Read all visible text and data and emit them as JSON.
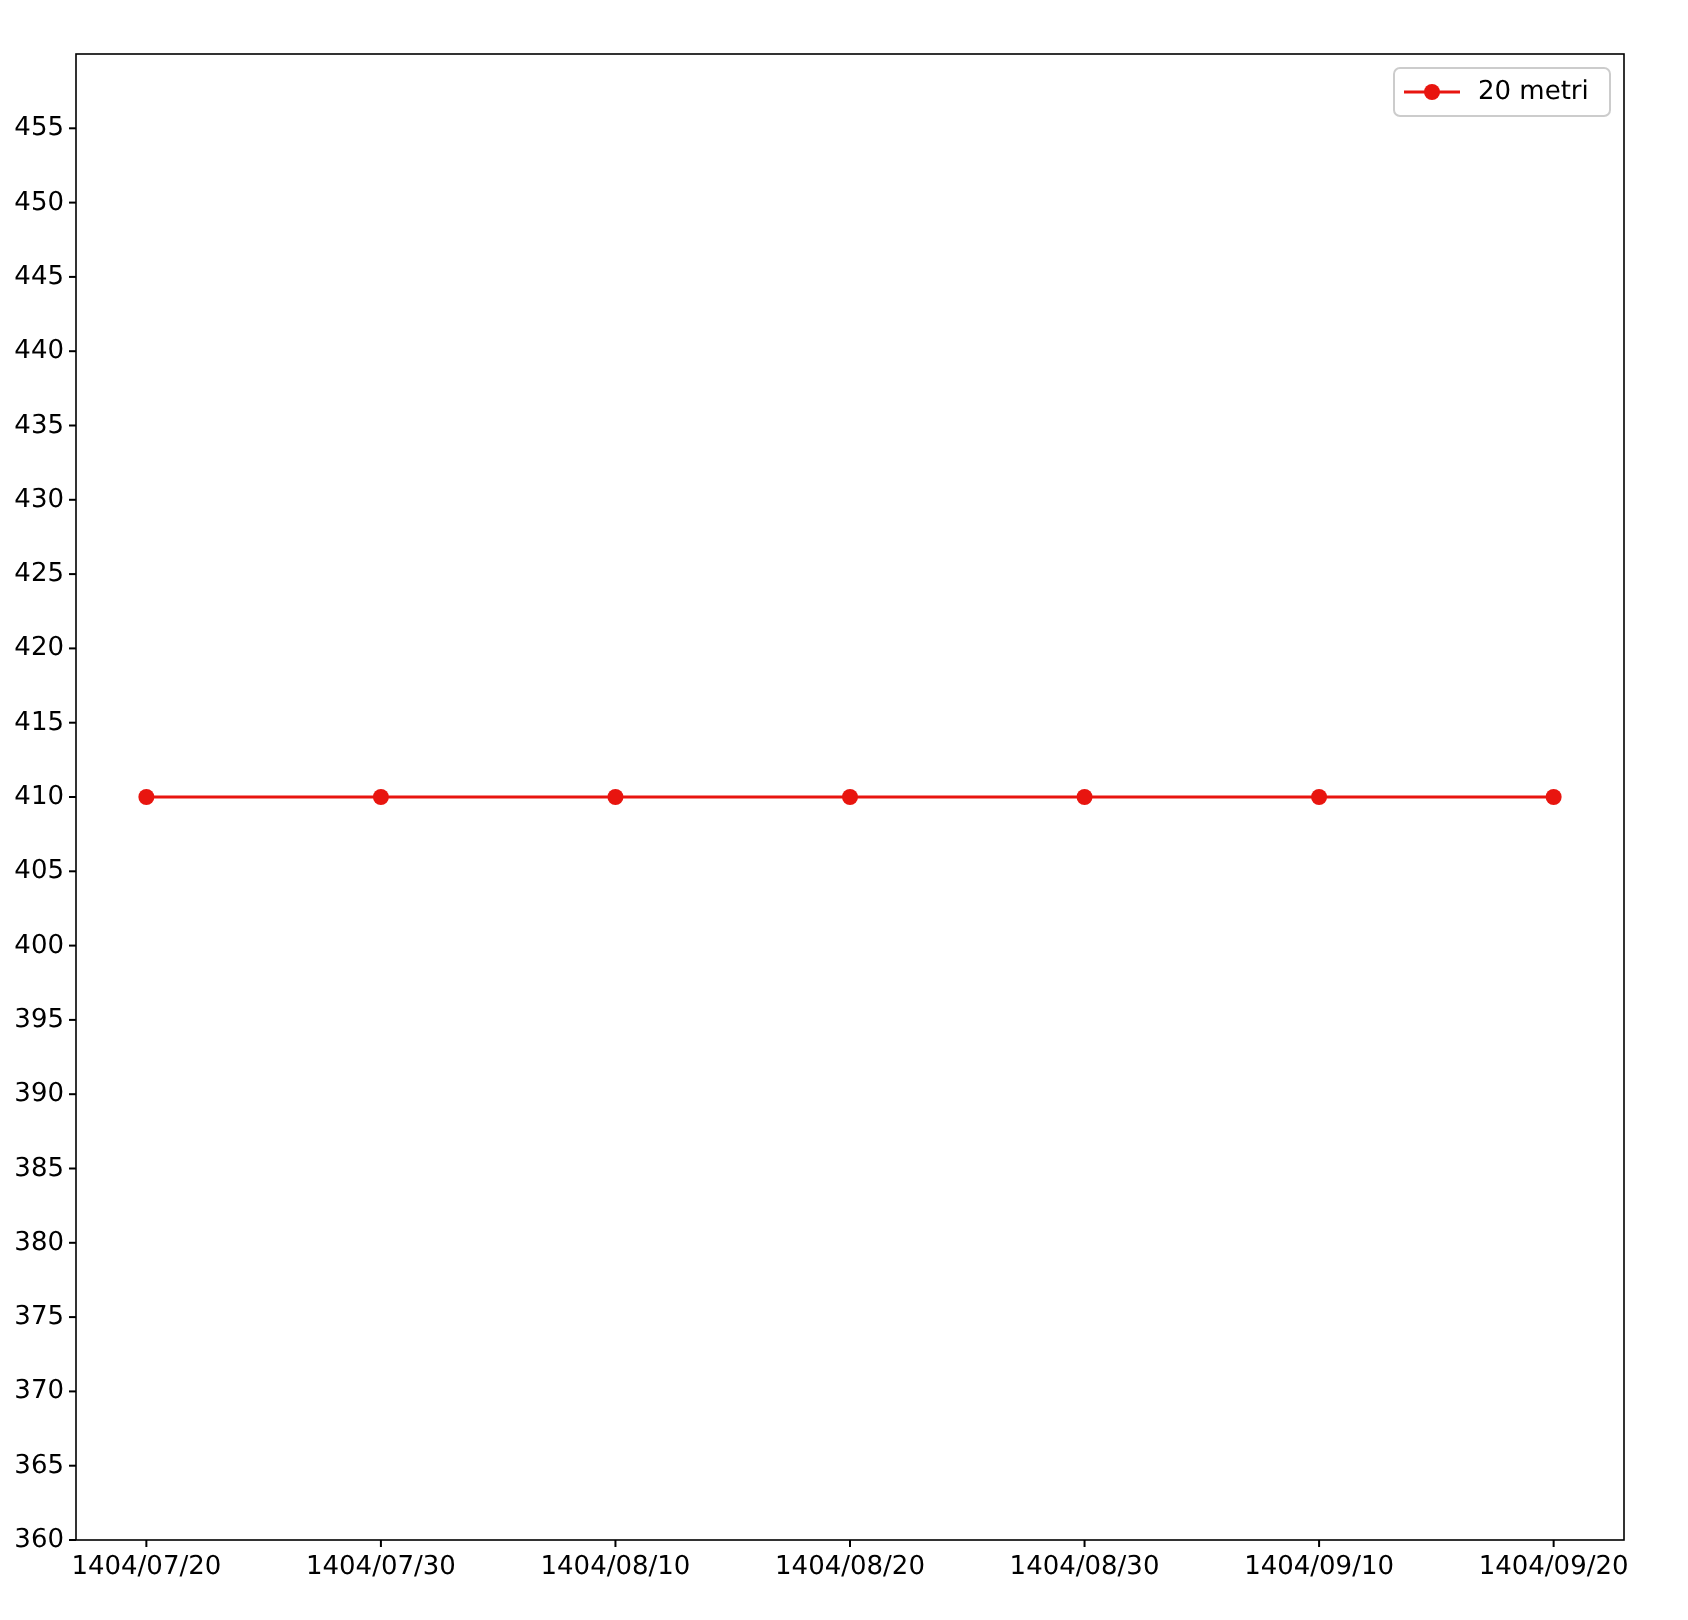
{
  "chart_data": {
    "type": "line",
    "categories": [
      "1404/07/20",
      "1404/07/30",
      "1404/08/10",
      "1404/08/20",
      "1404/08/30",
      "1404/09/10",
      "1404/09/20"
    ],
    "series": [
      {
        "name": "20 metri",
        "color": "#e8150f",
        "values": [
          410,
          410,
          410,
          410,
          410,
          410,
          410
        ]
      }
    ],
    "ylim": [
      360,
      460
    ],
    "yticks": [
      360,
      365,
      370,
      375,
      380,
      385,
      390,
      395,
      400,
      405,
      410,
      415,
      420,
      425,
      430,
      435,
      440,
      445,
      450,
      455
    ],
    "grid": false,
    "legend": "top right",
    "marker": "circle",
    "line_style": "solid"
  }
}
